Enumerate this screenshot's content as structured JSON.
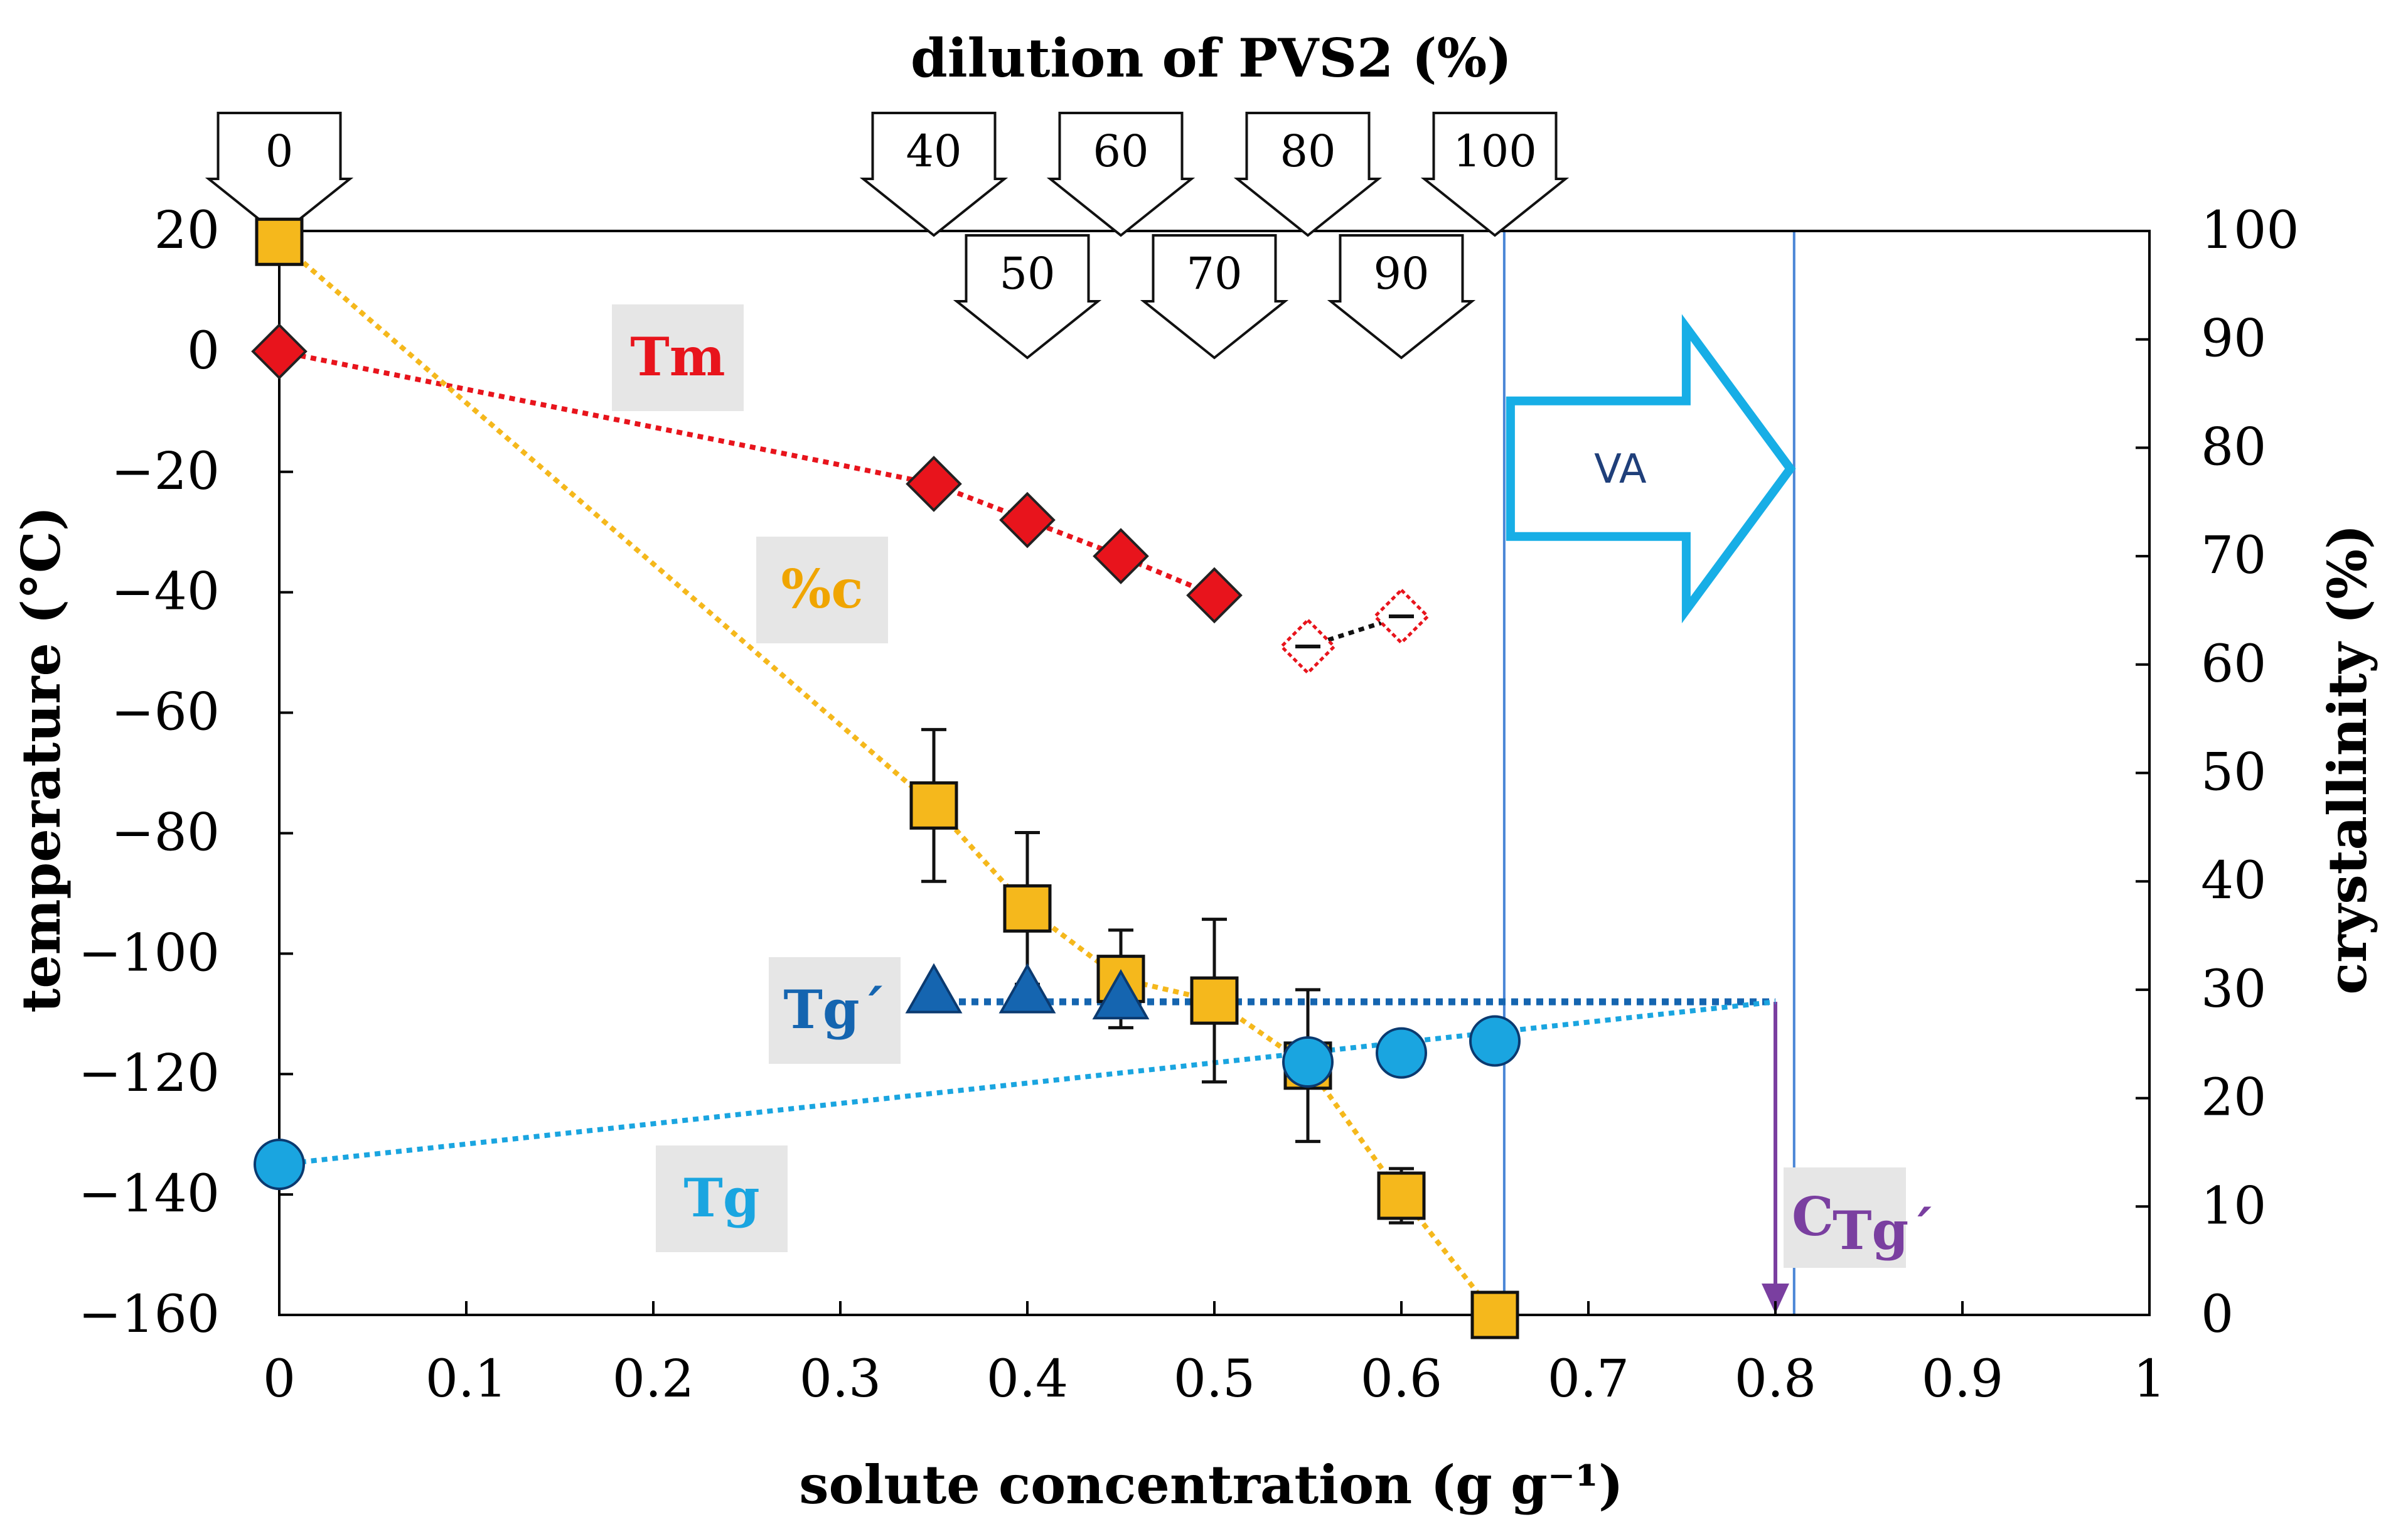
{
  "chart_data": {
    "type": "scatter",
    "title": "dilution of PVS2 (%)",
    "xlabel": "solute concentration (g g⁻¹)",
    "ylabel": "temperature (°C)",
    "y2label": "crystallinity (%)",
    "xlim": [
      0,
      1
    ],
    "ylim": [
      -160,
      20
    ],
    "y2lim": [
      0,
      100
    ],
    "x_ticks": [
      0,
      0.1,
      0.2,
      0.3,
      0.4,
      0.5,
      0.6,
      0.7,
      0.8,
      0.9,
      1
    ],
    "x_tick_labels": [
      "0",
      "0.1",
      "0.2",
      "0.3",
      "0.4",
      "0.5",
      "0.6",
      "0.7",
      "0.8",
      "0.9",
      "1"
    ],
    "y_ticks": [
      20,
      0,
      -20,
      -40,
      -60,
      -80,
      -100,
      -120,
      -140,
      -160
    ],
    "y_tick_labels": [
      "20",
      "0",
      "−20",
      "−40",
      "−60",
      "−80",
      "−100",
      "−120",
      "−140",
      "−160"
    ],
    "y2_ticks": [
      100,
      90,
      80,
      70,
      60,
      50,
      40,
      30,
      20,
      10,
      0
    ],
    "y2_tick_labels": [
      "100",
      "90",
      "80",
      "70",
      "60",
      "50",
      "40",
      "30",
      "20",
      "10",
      "0"
    ],
    "dilution_arrows": [
      {
        "label": "0",
        "x": 0,
        "row": "top"
      },
      {
        "label": "40",
        "x": 0.35,
        "row": "top"
      },
      {
        "label": "60",
        "x": 0.45,
        "row": "top"
      },
      {
        "label": "80",
        "x": 0.55,
        "row": "top"
      },
      {
        "label": "100",
        "x": 0.65,
        "row": "top"
      },
      {
        "label": "50",
        "x": 0.4,
        "row": "bottom"
      },
      {
        "label": "70",
        "x": 0.5,
        "row": "bottom"
      },
      {
        "label": "90",
        "x": 0.6,
        "row": "bottom"
      }
    ],
    "series": [
      {
        "name": "Tm",
        "axis": "left",
        "marker": "diamond",
        "color": "#e8141c",
        "points": [
          {
            "x": 0,
            "y": 0
          },
          {
            "x": 0.35,
            "y": -22
          },
          {
            "x": 0.4,
            "y": -28
          },
          {
            "x": 0.45,
            "y": -34
          },
          {
            "x": 0.5,
            "y": -40.5
          }
        ],
        "line": "dotted"
      },
      {
        "name": "Tm (open)",
        "axis": "left",
        "marker": "diamond-open",
        "color": "#e8141c",
        "points": [
          {
            "x": 0.55,
            "y": -49,
            "err": 0.5
          },
          {
            "x": 0.6,
            "y": -44,
            "err": 0.8
          }
        ],
        "line": "dotted-black"
      },
      {
        "name": "%c",
        "axis": "right",
        "marker": "square",
        "color": "#f5b81c",
        "points": [
          {
            "x": 0,
            "y": 99
          },
          {
            "x": 0.35,
            "y": 47,
            "err": 7
          },
          {
            "x": 0.4,
            "y": 37.5,
            "err": 7
          },
          {
            "x": 0.45,
            "y": 31,
            "err": 4.5
          },
          {
            "x": 0.5,
            "y": 29,
            "err": 7.5
          },
          {
            "x": 0.55,
            "y": 23,
            "err": 7
          },
          {
            "x": 0.6,
            "y": 11,
            "err": 2.5
          },
          {
            "x": 0.65,
            "y": 0
          }
        ],
        "line": "dotted"
      },
      {
        "name": "Tg´",
        "axis": "left",
        "marker": "triangle",
        "color": "#1565b0",
        "points": [
          {
            "x": 0.35,
            "y": -107
          },
          {
            "x": 0.4,
            "y": -107
          },
          {
            "x": 0.45,
            "y": -108
          }
        ],
        "line": "dotted"
      },
      {
        "name": "Tg",
        "axis": "left",
        "marker": "circle",
        "color": "#1aa5e0",
        "points": [
          {
            "x": 0,
            "y": -135
          },
          {
            "x": 0.55,
            "y": -118
          },
          {
            "x": 0.6,
            "y": -116.5
          },
          {
            "x": 0.65,
            "y": -114.5
          }
        ],
        "line": "dotted"
      }
    ],
    "annotations": {
      "tm_label": "Tm",
      "pc_label": "%c",
      "tgp_label": "Tg´",
      "tg_label": "Tg",
      "ctg_main": "C",
      "ctg_sub": "Tg´",
      "va_label": "VA",
      "tg_prime_line_y": -108,
      "ctg_x": 0.8,
      "va_from_x": 0.655,
      "va_to_x": 0.81
    }
  },
  "colors": {
    "tm": "#e8141c",
    "pc": "#f5b81c",
    "pc_label": "#f0a500",
    "tgp": "#1565b0",
    "tg": "#1aa5e0",
    "ctg": "#7a3fa0",
    "va": "#17aee6",
    "guide": "#4a86d6",
    "label_bg": "#e6e6e6"
  }
}
